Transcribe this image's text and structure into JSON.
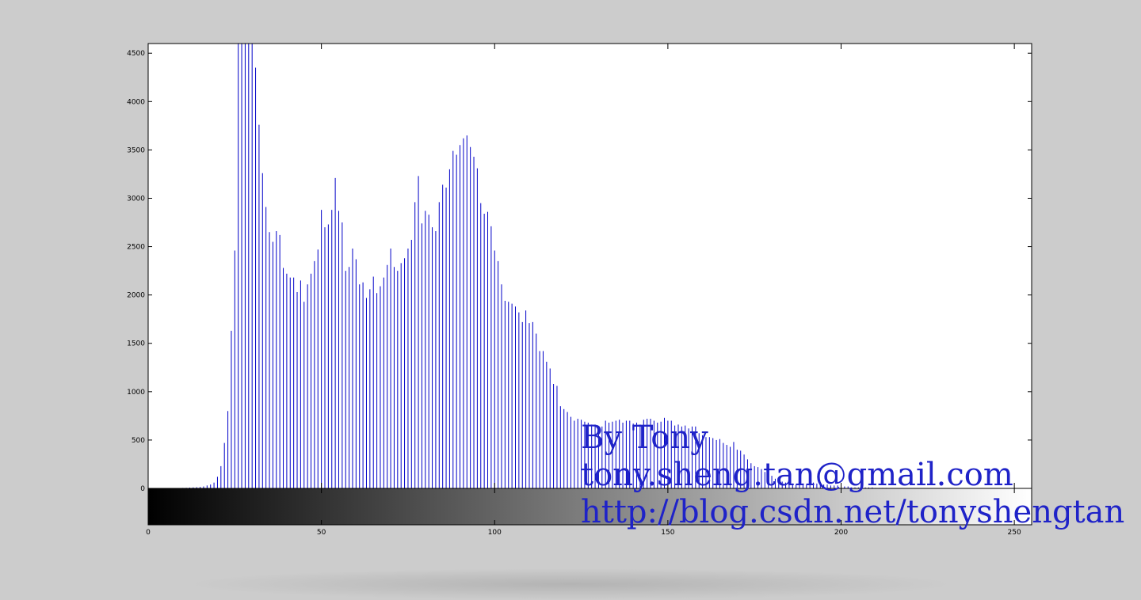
{
  "chart_data": {
    "type": "bar",
    "title": "",
    "xlabel": "",
    "ylabel": "",
    "xlim": [
      0,
      255
    ],
    "ylim": [
      0,
      4600
    ],
    "colorbar_range": [
      0,
      255
    ],
    "x_ticks": [
      "0",
      "50",
      "100",
      "150",
      "200",
      "250"
    ],
    "y_ticks": [
      "0",
      "500",
      "1000",
      "1500",
      "2000",
      "2500",
      "3000",
      "3500",
      "4000",
      "4500"
    ],
    "bar_color": "#0000c8",
    "x_start": 0,
    "values": [
      0,
      0,
      0,
      0,
      0,
      0,
      0,
      0,
      0,
      0,
      5,
      6,
      8,
      10,
      12,
      15,
      20,
      30,
      40,
      60,
      120,
      230,
      470,
      800,
      1630,
      2460,
      4600,
      4600,
      4600,
      4600,
      4600,
      4350,
      3760,
      3260,
      2910,
      2650,
      2550,
      2660,
      2620,
      2280,
      2220,
      2180,
      2180,
      2030,
      2150,
      1930,
      2110,
      2220,
      2350,
      2470,
      2880,
      2700,
      2730,
      2880,
      3210,
      2870,
      2750,
      2250,
      2290,
      2480,
      2370,
      2110,
      2130,
      1970,
      2060,
      2190,
      2020,
      2090,
      2180,
      2310,
      2480,
      2290,
      2250,
      2330,
      2380,
      2480,
      2570,
      2960,
      3230,
      2740,
      2870,
      2830,
      2700,
      2660,
      2960,
      3140,
      3110,
      3300,
      3490,
      3450,
      3550,
      3620,
      3650,
      3530,
      3430,
      3310,
      2950,
      2840,
      2860,
      2710,
      2460,
      2350,
      2110,
      1940,
      1930,
      1910,
      1880,
      1820,
      1720,
      1840,
      1710,
      1720,
      1600,
      1420,
      1420,
      1310,
      1240,
      1080,
      1060,
      850,
      820,
      790,
      740,
      700,
      720,
      710,
      690,
      680,
      660,
      660,
      640,
      640,
      700,
      680,
      690,
      700,
      710,
      680,
      700,
      700,
      670,
      680,
      660,
      710,
      720,
      720,
      700,
      680,
      690,
      730,
      700,
      700,
      650,
      660,
      640,
      650,
      620,
      640,
      640,
      570,
      550,
      530,
      530,
      520,
      500,
      510,
      470,
      450,
      430,
      480,
      400,
      390,
      350,
      300,
      260,
      230,
      220,
      200,
      170,
      150,
      130,
      100,
      90,
      70,
      60,
      50,
      50,
      40,
      40,
      50,
      40,
      50,
      60,
      50,
      50,
      40,
      40,
      30,
      30,
      30,
      20,
      20,
      20,
      10,
      10,
      10,
      10,
      10,
      10,
      10,
      5,
      5,
      5,
      5,
      0,
      0,
      0,
      0,
      0,
      0,
      0,
      0,
      0,
      0,
      0,
      0,
      0,
      0,
      0,
      0,
      0,
      0,
      0,
      0,
      0,
      0,
      0,
      0,
      0,
      0,
      0,
      0,
      0,
      0,
      0,
      0,
      0,
      0,
      0,
      0,
      0,
      0,
      0,
      0,
      0,
      0,
      0,
      0,
      0,
      0,
      0,
      0,
      0,
      0,
      0,
      0,
      0
    ]
  },
  "watermark": {
    "line1": "By Tony",
    "line2": "tony.sheng.tan@gmail.com",
    "line3": "http://blog.csdn.net/tonyshengtan",
    "color": "#1f23c8"
  }
}
